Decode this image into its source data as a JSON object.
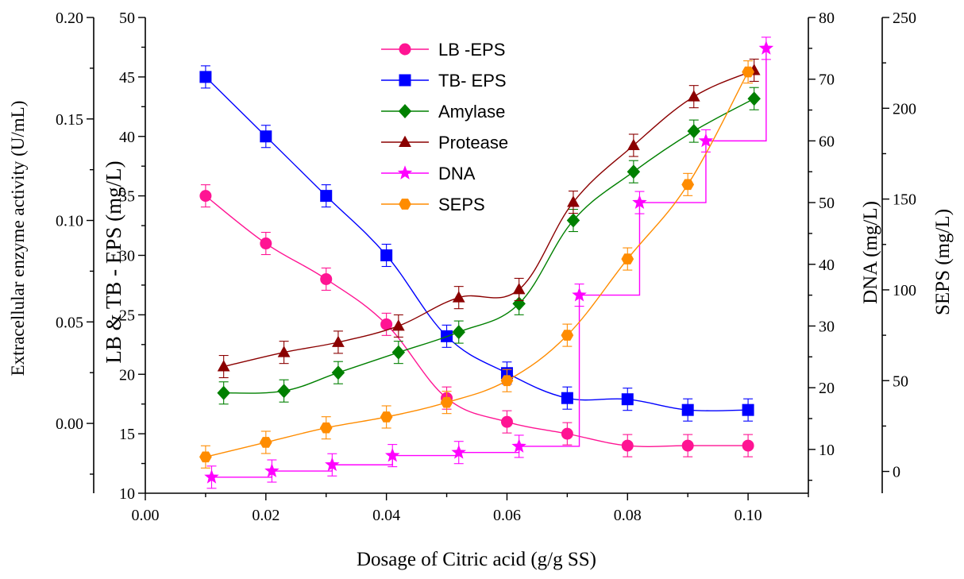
{
  "chart_data": {
    "type": "line",
    "xlabel": "Dosage of Citric acid (g/g SS)",
    "x_ticks": [
      "0.00",
      "0.02",
      "0.04",
      "0.06",
      "0.08",
      "0.10"
    ],
    "xlim": [
      0.0,
      0.11
    ],
    "axes": {
      "left_outer": {
        "label": "Extracellular enzyme activity (U/mL)",
        "lim": [
          -0.0344,
          0.2
        ],
        "ticks": [
          "0.00",
          "0.05",
          "0.10",
          "0.15",
          "0.20"
        ]
      },
      "left_inner": {
        "label": "LB & TB - EPS (mg/L)",
        "lim": [
          10,
          50
        ],
        "ticks": [
          "10",
          "15",
          "20",
          "25",
          "30",
          "35",
          "40",
          "45",
          "50"
        ]
      },
      "right_inner": {
        "label": "DNA (mg/L)",
        "lim": [
          2.9,
          80
        ],
        "ticks": [
          "10",
          "20",
          "30",
          "40",
          "50",
          "60",
          "70",
          "80"
        ]
      },
      "right_outer": {
        "label": "SEPS (mg/L)",
        "lim": [
          -12,
          250
        ],
        "ticks": [
          "0",
          "50",
          "100",
          "150",
          "200",
          "250"
        ]
      }
    },
    "series": [
      {
        "name": "LB -EPS",
        "axis": "left_inner",
        "color": "#ff1493",
        "marker": "circle",
        "line": "smooth",
        "x": [
          0.01,
          0.02,
          0.03,
          0.04,
          0.05,
          0.06,
          0.07,
          0.08,
          0.09,
          0.1
        ],
        "y": [
          35,
          31,
          28,
          24.2,
          18,
          16,
          15,
          14,
          14,
          14
        ]
      },
      {
        "name": "TB- EPS",
        "axis": "left_inner",
        "color": "#0000ff",
        "marker": "square",
        "line": "smooth",
        "x": [
          0.01,
          0.02,
          0.03,
          0.04,
          0.05,
          0.06,
          0.07,
          0.08,
          0.09,
          0.1
        ],
        "y": [
          45,
          40,
          35,
          30,
          23.2,
          20.1,
          18,
          17.9,
          17,
          17
        ]
      },
      {
        "name": "Amylase",
        "axis": "left_outer",
        "color": "#008000",
        "marker": "diamond",
        "line": "smooth",
        "x": [
          0.013,
          0.023,
          0.032,
          0.042,
          0.052,
          0.062,
          0.071,
          0.081,
          0.091,
          0.101
        ],
        "y": [
          0.015,
          0.016,
          0.025,
          0.035,
          0.045,
          0.059,
          0.1,
          0.124,
          0.144,
          0.16
        ]
      },
      {
        "name": "Protease",
        "axis": "left_outer",
        "color": "#8b0000",
        "marker": "triangle",
        "line": "smooth",
        "x": [
          0.013,
          0.023,
          0.032,
          0.042,
          0.052,
          0.062,
          0.071,
          0.081,
          0.091,
          0.101
        ],
        "y": [
          0.028,
          0.035,
          0.04,
          0.048,
          0.062,
          0.066,
          0.109,
          0.137,
          0.161,
          0.174
        ]
      },
      {
        "name": " DNA",
        "axis": "right_inner",
        "color": "#ff00ff",
        "marker": "star",
        "line": "step",
        "x": [
          0.011,
          0.021,
          0.031,
          0.041,
          0.052,
          0.062,
          0.072,
          0.082,
          0.093,
          0.103
        ],
        "y": [
          5.5,
          6.5,
          7.5,
          9,
          9.5,
          10.5,
          35,
          50,
          60,
          75
        ]
      },
      {
        "name": "SEPS",
        "axis": "right_outer",
        "color": "#ff8c00",
        "marker": "hexagon",
        "line": "smooth",
        "x": [
          0.01,
          0.02,
          0.03,
          0.04,
          0.05,
          0.06,
          0.07,
          0.08,
          0.09,
          0.1
        ],
        "y": [
          8,
          16,
          24,
          30,
          38,
          50,
          75,
          117,
          158,
          220
        ]
      }
    ],
    "legend_position": "top-center"
  }
}
